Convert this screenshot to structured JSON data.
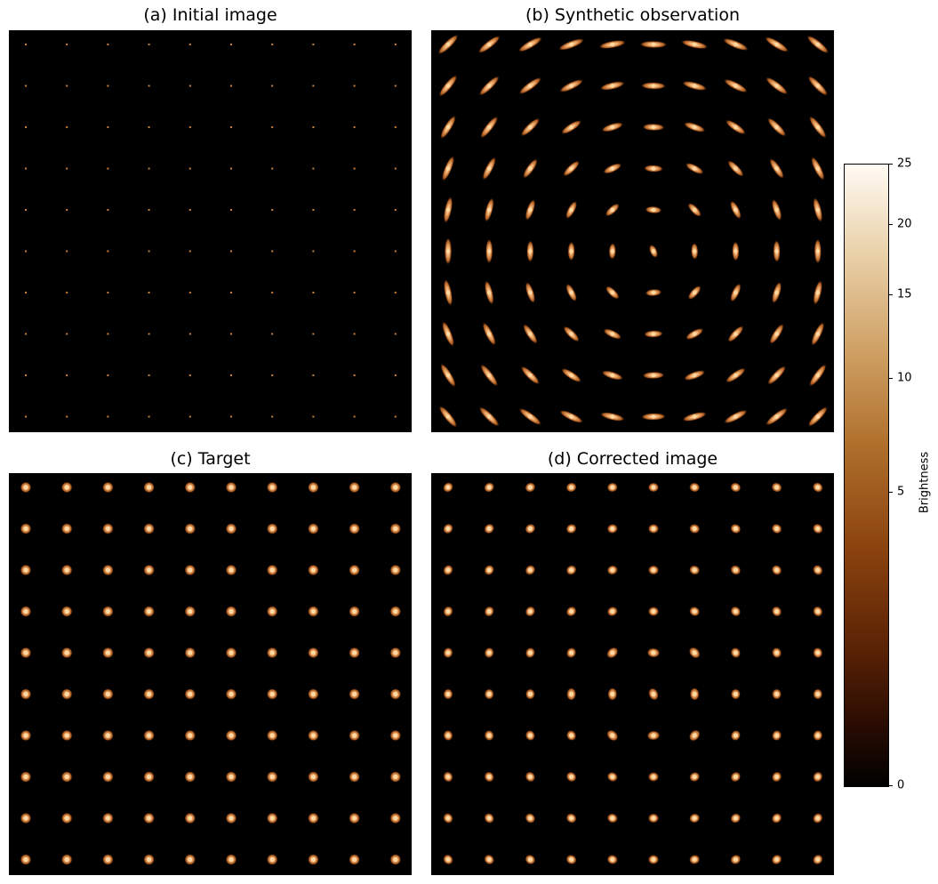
{
  "panels": {
    "a": {
      "title": "(a) Initial image"
    },
    "b": {
      "title": "(b) Synthetic observation"
    },
    "c": {
      "title": "(c) Target"
    },
    "d": {
      "title": "(d) Corrected image"
    }
  },
  "grid": {
    "rows": 10,
    "cols": 10
  },
  "colorbar": {
    "label": "Brightness",
    "ticks": [
      "0",
      "5",
      "10",
      "15",
      "20",
      "25"
    ],
    "colors": [
      "#000000",
      "#5a2205",
      "#8a420e",
      "#cfa064",
      "#fffaf3"
    ]
  },
  "colors": {
    "star_core": "#f0b070",
    "star_halo": "#a8561c",
    "background": "#000000"
  }
}
